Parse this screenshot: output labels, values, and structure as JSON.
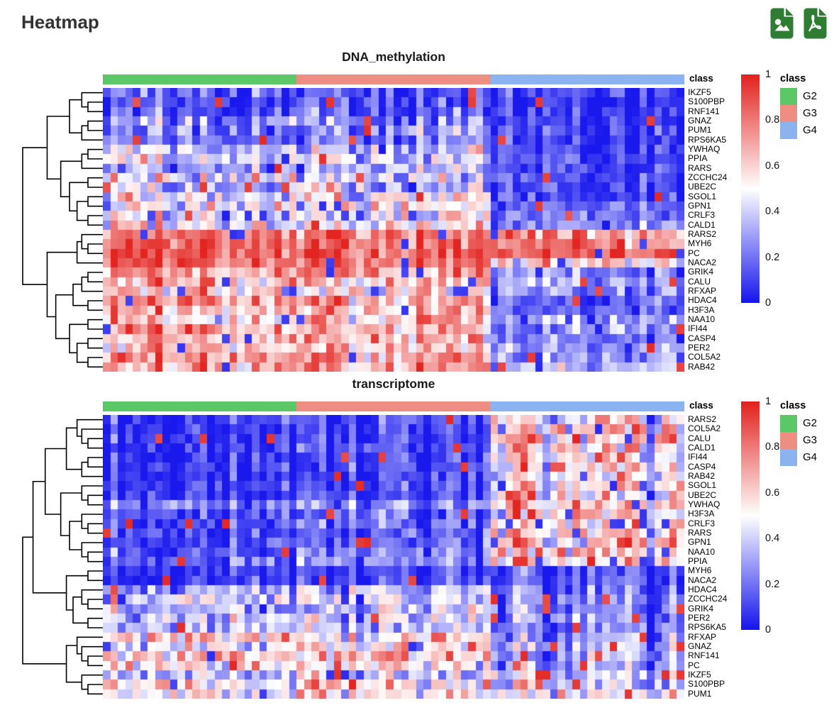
{
  "page": {
    "title": "Heatmap"
  },
  "toolbar": {
    "icon_color": "#2e7d32",
    "buttons": [
      {
        "label": "download-image",
        "icon": "image-file-icon"
      },
      {
        "label": "download-pdf",
        "icon": "pdf-file-icon"
      }
    ]
  },
  "annotation_label": "class",
  "class_legend": {
    "title": "class",
    "items": [
      {
        "label": "G2",
        "color": "#5bc766"
      },
      {
        "label": "G3",
        "color": "#ee8e83"
      },
      {
        "label": "G4",
        "color": "#8ab3f0"
      }
    ]
  },
  "colorbar": {
    "ticks": [
      "1",
      "0.8",
      "0.6",
      "0.4",
      "0.2",
      "0"
    ],
    "high_color": "#e2201c",
    "mid_color": "#ffffff",
    "low_color": "#1414ee"
  },
  "chart_data": [
    {
      "type": "heatmap",
      "title": "DNA_methylation",
      "value_range": [
        0,
        1
      ],
      "column_groups": [
        {
          "name": "G2",
          "color": "#5bc766",
          "n_columns": 26
        },
        {
          "name": "G3",
          "color": "#ee8e83",
          "n_columns": 26
        },
        {
          "name": "G4",
          "color": "#8ab3f0",
          "n_columns": 26
        }
      ],
      "outlier_prob": [
        0.03,
        0.03,
        0.02
      ],
      "column_variation": [
        0.07,
        0.07,
        0.06
      ],
      "noise_seed": 101,
      "rows": [
        {
          "gene": "IKZF5",
          "group_means": [
            0.18,
            0.15,
            0.1
          ]
        },
        {
          "gene": "S100PBP",
          "group_means": [
            0.14,
            0.18,
            0.08
          ]
        },
        {
          "gene": "RNF141",
          "group_means": [
            0.16,
            0.18,
            0.08
          ]
        },
        {
          "gene": "GNAZ",
          "group_means": [
            0.3,
            0.28,
            0.08
          ]
        },
        {
          "gene": "PUM1",
          "group_means": [
            0.26,
            0.3,
            0.1
          ]
        },
        {
          "gene": "RPS6KA5",
          "group_means": [
            0.22,
            0.24,
            0.08
          ]
        },
        {
          "gene": "YWHAQ",
          "group_means": [
            0.36,
            0.38,
            0.1
          ]
        },
        {
          "gene": "PPIA",
          "group_means": [
            0.42,
            0.44,
            0.14
          ]
        },
        {
          "gene": "RARS",
          "group_means": [
            0.3,
            0.34,
            0.1
          ]
        },
        {
          "gene": "ZCCHC24",
          "group_means": [
            0.44,
            0.44,
            0.12
          ]
        },
        {
          "gene": "UBE2C",
          "group_means": [
            0.4,
            0.44,
            0.1
          ]
        },
        {
          "gene": "SGOL1",
          "group_means": [
            0.5,
            0.48,
            0.12
          ]
        },
        {
          "gene": "GPN1",
          "group_means": [
            0.46,
            0.5,
            0.15
          ]
        },
        {
          "gene": "CRLF3",
          "group_means": [
            0.5,
            0.5,
            0.2
          ]
        },
        {
          "gene": "CALD1",
          "group_means": [
            0.54,
            0.55,
            0.24
          ]
        },
        {
          "gene": "RARS2",
          "group_means": [
            0.85,
            0.84,
            0.72
          ]
        },
        {
          "gene": "MYH6",
          "group_means": [
            0.88,
            0.86,
            0.78
          ]
        },
        {
          "gene": "PC",
          "group_means": [
            0.9,
            0.88,
            0.84
          ]
        },
        {
          "gene": "NACA2",
          "group_means": [
            0.88,
            0.86,
            0.58
          ]
        },
        {
          "gene": "GRIK4",
          "group_means": [
            0.78,
            0.74,
            0.2
          ]
        },
        {
          "gene": "CALU",
          "group_means": [
            0.68,
            0.64,
            0.3
          ]
        },
        {
          "gene": "RFXAP",
          "group_means": [
            0.6,
            0.6,
            0.26
          ]
        },
        {
          "gene": "HDAC4",
          "group_means": [
            0.76,
            0.7,
            0.16
          ]
        },
        {
          "gene": "H3F3A",
          "group_means": [
            0.7,
            0.7,
            0.2
          ]
        },
        {
          "gene": "NAA10",
          "group_means": [
            0.62,
            0.66,
            0.3
          ]
        },
        {
          "gene": "IFI44",
          "group_means": [
            0.74,
            0.7,
            0.26
          ]
        },
        {
          "gene": "CASP4",
          "group_means": [
            0.7,
            0.66,
            0.22
          ]
        },
        {
          "gene": "PER2",
          "group_means": [
            0.64,
            0.62,
            0.26
          ]
        },
        {
          "gene": "COL5A2",
          "group_means": [
            0.74,
            0.7,
            0.3
          ]
        },
        {
          "gene": "RAB42",
          "group_means": [
            0.7,
            0.74,
            0.34
          ]
        }
      ],
      "row_dendrogram": [
        [
          [
            [
              0,
              [
                1,
                2
              ]
            ],
            [
              [
                3,
                4
              ],
              5
            ]
          ],
          [
            [
              [
                6,
                7
              ],
              8
            ],
            [
              [
                9,
                10
              ],
              [
                [
                  11,
                  12
                ],
                [
                  13,
                  14
                ]
              ]
            ]
          ]
        ],
        [
          [
            [
              15,
              [
                16,
                17
              ]
            ],
            18
          ],
          [
            [
              [
                [
                  19,
                  20
                ],
                21
              ],
              [
                22,
                23
              ]
            ],
            [
              [
                24,
                25
              ],
              [
                [
                  26,
                  27
                ],
                [
                  28,
                  29
                ]
              ]
            ]
          ]
        ]
      ]
    },
    {
      "type": "heatmap",
      "title": "transcriptome",
      "value_range": [
        0,
        1
      ],
      "column_groups": [
        {
          "name": "G2",
          "color": "#5bc766",
          "n_columns": 26
        },
        {
          "name": "G3",
          "color": "#ee8e83",
          "n_columns": 26
        },
        {
          "name": "G4",
          "color": "#8ab3f0",
          "n_columns": 26
        }
      ],
      "outlier_prob": [
        0.02,
        0.02,
        0.07
      ],
      "column_variation": [
        0.06,
        0.06,
        0.12
      ],
      "noise_seed": 202,
      "rows": [
        {
          "gene": "RARS2",
          "group_means": [
            0.1,
            0.1,
            0.45
          ]
        },
        {
          "gene": "COL5A2",
          "group_means": [
            0.08,
            0.08,
            0.5
          ]
        },
        {
          "gene": "CALU",
          "group_means": [
            0.1,
            0.1,
            0.5
          ]
        },
        {
          "gene": "CALD1",
          "group_means": [
            0.1,
            0.12,
            0.45
          ]
        },
        {
          "gene": "IFI44",
          "group_means": [
            0.08,
            0.1,
            0.4
          ]
        },
        {
          "gene": "CASP4",
          "group_means": [
            0.1,
            0.1,
            0.45
          ]
        },
        {
          "gene": "RAB42",
          "group_means": [
            0.08,
            0.1,
            0.4
          ]
        },
        {
          "gene": "SGOL1",
          "group_means": [
            0.12,
            0.12,
            0.5
          ]
        },
        {
          "gene": "UBE2C",
          "group_means": [
            0.1,
            0.12,
            0.45
          ]
        },
        {
          "gene": "YWHAQ",
          "group_means": [
            0.25,
            0.25,
            0.55
          ]
        },
        {
          "gene": "H3F3A",
          "group_means": [
            0.15,
            0.15,
            0.5
          ]
        },
        {
          "gene": "CRLF3",
          "group_means": [
            0.15,
            0.18,
            0.5
          ]
        },
        {
          "gene": "RARS",
          "group_means": [
            0.12,
            0.15,
            0.55
          ]
        },
        {
          "gene": "GPN1",
          "group_means": [
            0.15,
            0.15,
            0.5
          ]
        },
        {
          "gene": "NAA10",
          "group_means": [
            0.18,
            0.2,
            0.55
          ]
        },
        {
          "gene": "PPIA",
          "group_means": [
            0.2,
            0.2,
            0.55
          ]
        },
        {
          "gene": "MYH6",
          "group_means": [
            0.08,
            0.08,
            0.05
          ]
        },
        {
          "gene": "NACA2",
          "group_means": [
            0.1,
            0.1,
            0.05
          ]
        },
        {
          "gene": "HDAC4",
          "group_means": [
            0.35,
            0.35,
            0.12
          ]
        },
        {
          "gene": "ZCCHC24",
          "group_means": [
            0.4,
            0.4,
            0.15
          ]
        },
        {
          "gene": "GRIK4",
          "group_means": [
            0.35,
            0.38,
            0.15
          ]
        },
        {
          "gene": "PER2",
          "group_means": [
            0.4,
            0.4,
            0.18
          ]
        },
        {
          "gene": "RPS6KA5",
          "group_means": [
            0.35,
            0.35,
            0.15
          ]
        },
        {
          "gene": "RFXAP",
          "group_means": [
            0.6,
            0.55,
            0.2
          ]
        },
        {
          "gene": "GNAZ",
          "group_means": [
            0.5,
            0.5,
            0.25
          ]
        },
        {
          "gene": "RNF141",
          "group_means": [
            0.65,
            0.6,
            0.25
          ]
        },
        {
          "gene": "PC",
          "group_means": [
            0.6,
            0.6,
            0.2
          ]
        },
        {
          "gene": "IKZF5",
          "group_means": [
            0.35,
            0.4,
            0.3
          ]
        },
        {
          "gene": "S100PBP",
          "group_means": [
            0.55,
            0.55,
            0.35
          ]
        },
        {
          "gene": "PUM1",
          "group_means": [
            0.5,
            0.5,
            0.4
          ]
        }
      ],
      "row_dendrogram": [
        [
          [
            [
              [
                0,
                [
                  1,
                  [
                    2,
                    3
                  ]
                ]
              ],
              [
                [
                  4,
                  5
                ],
                6
              ]
            ],
            [
              [
                7,
                [
                  8,
                  9
                ]
              ],
              [
                [
                  10,
                  [
                    11,
                    12
                  ]
                ],
                [
                  13,
                  [
                    14,
                    15
                  ]
                ]
              ]
            ]
          ],
          [
            [
              16,
              17
            ],
            [
              [
                18,
                [
                  19,
                  20
                ]
              ],
              [
                21,
                22
              ]
            ]
          ]
        ],
        [
          [
            23,
            [
              24,
              [
                25,
                26
              ]
            ]
          ],
          [
            27,
            [
              28,
              29
            ]
          ]
        ]
      ]
    }
  ]
}
